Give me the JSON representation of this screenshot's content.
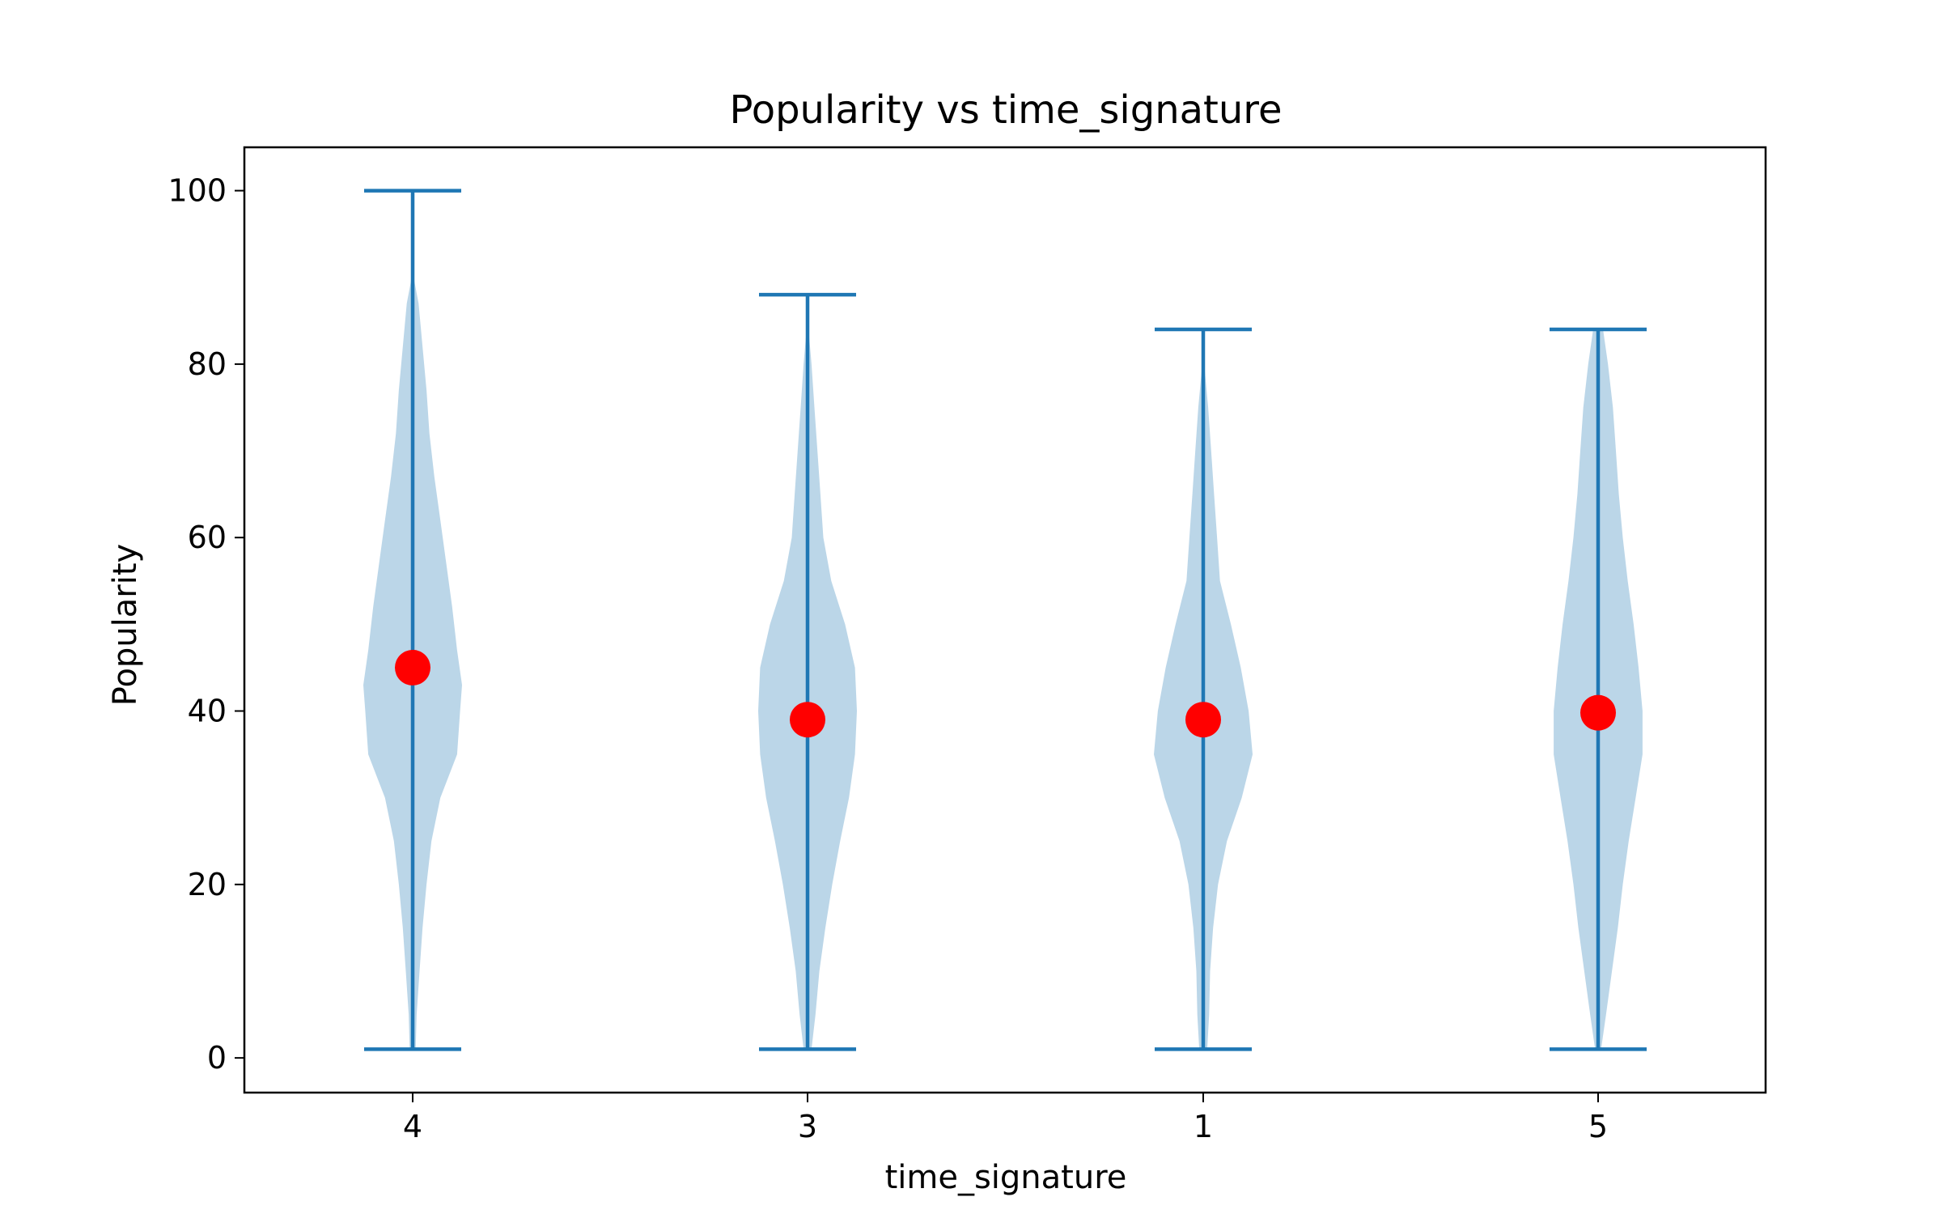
{
  "chart_data": {
    "type": "violin",
    "title": "Popularity vs time_signature",
    "xlabel": "time_signature",
    "ylabel": "Popularity",
    "categories": [
      "4",
      "3",
      "1",
      "5"
    ],
    "ylim": [
      -4,
      105
    ],
    "yticks": [
      0,
      20,
      40,
      60,
      80,
      100
    ],
    "grid": false,
    "colors": {
      "body": "#1f77b4",
      "body_alpha": 0.3,
      "lines": "#1f77b4",
      "marker": "#ff0000"
    },
    "series": [
      {
        "category": "4",
        "min": 1,
        "max": 100,
        "mean": 45,
        "profile": [
          [
            1,
            0.03
          ],
          [
            5,
            0.04
          ],
          [
            10,
            0.07
          ],
          [
            15,
            0.1
          ],
          [
            20,
            0.14
          ],
          [
            25,
            0.19
          ],
          [
            30,
            0.28
          ],
          [
            35,
            0.45
          ],
          [
            40,
            0.48
          ],
          [
            43,
            0.5
          ],
          [
            47,
            0.45
          ],
          [
            52,
            0.4
          ],
          [
            57,
            0.34
          ],
          [
            62,
            0.28
          ],
          [
            67,
            0.22
          ],
          [
            72,
            0.17
          ],
          [
            77,
            0.14
          ],
          [
            82,
            0.1
          ],
          [
            87,
            0.06
          ],
          [
            90,
            0.01
          ]
        ]
      },
      {
        "category": "3",
        "min": 1,
        "max": 88,
        "mean": 39,
        "profile": [
          [
            1,
            0.04
          ],
          [
            5,
            0.08
          ],
          [
            10,
            0.12
          ],
          [
            15,
            0.18
          ],
          [
            20,
            0.25
          ],
          [
            25,
            0.33
          ],
          [
            30,
            0.42
          ],
          [
            35,
            0.48
          ],
          [
            40,
            0.5
          ],
          [
            45,
            0.48
          ],
          [
            50,
            0.38
          ],
          [
            55,
            0.24
          ],
          [
            60,
            0.16
          ],
          [
            65,
            0.13
          ],
          [
            70,
            0.1
          ],
          [
            75,
            0.07
          ],
          [
            80,
            0.04
          ],
          [
            84,
            0.01
          ]
        ]
      },
      {
        "category": "1",
        "min": 1,
        "max": 84,
        "mean": 39,
        "profile": [
          [
            1,
            0.04
          ],
          [
            5,
            0.06
          ],
          [
            10,
            0.07
          ],
          [
            15,
            0.1
          ],
          [
            20,
            0.15
          ],
          [
            25,
            0.24
          ],
          [
            30,
            0.39
          ],
          [
            35,
            0.5
          ],
          [
            40,
            0.46
          ],
          [
            45,
            0.38
          ],
          [
            50,
            0.28
          ],
          [
            55,
            0.17
          ],
          [
            60,
            0.14
          ],
          [
            65,
            0.11
          ],
          [
            70,
            0.08
          ],
          [
            75,
            0.05
          ],
          [
            80,
            0.01
          ]
        ]
      },
      {
        "category": "5",
        "min": 1,
        "max": 84,
        "mean": 39.8,
        "profile": [
          [
            1,
            0.03
          ],
          [
            5,
            0.08
          ],
          [
            10,
            0.14
          ],
          [
            15,
            0.2
          ],
          [
            20,
            0.25
          ],
          [
            25,
            0.31
          ],
          [
            30,
            0.38
          ],
          [
            35,
            0.45
          ],
          [
            40,
            0.45
          ],
          [
            45,
            0.41
          ],
          [
            50,
            0.36
          ],
          [
            55,
            0.3
          ],
          [
            60,
            0.25
          ],
          [
            65,
            0.21
          ],
          [
            70,
            0.18
          ],
          [
            75,
            0.15
          ],
          [
            80,
            0.1
          ],
          [
            84,
            0.05
          ]
        ]
      }
    ]
  }
}
